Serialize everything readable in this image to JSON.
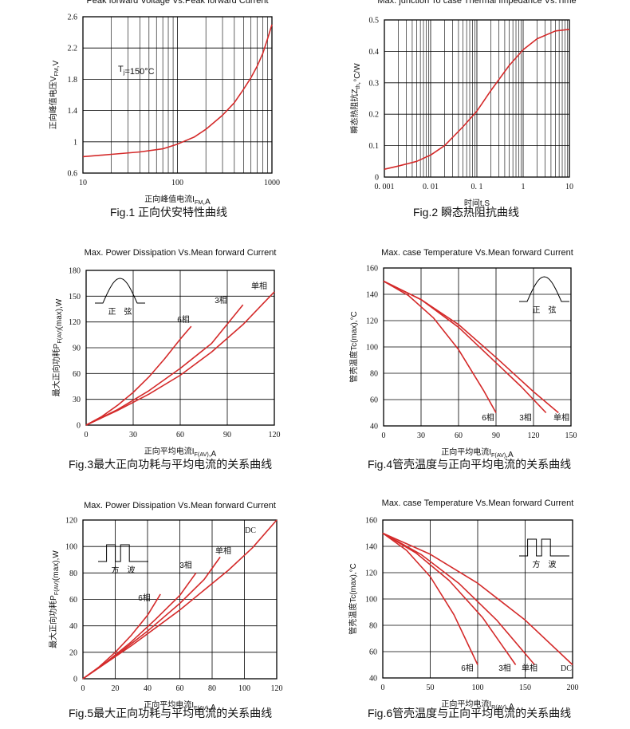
{
  "chart_data": [
    {
      "id": "fig1",
      "type": "line",
      "title": "Peak forward Voltage Vs.Peak forward Current",
      "xlabel": "正向峰值电流I_{FM},A",
      "ylabel": "正向峰值电压V_{FM},V",
      "xscale": "log",
      "xlim": [
        10,
        1000
      ],
      "xticks": [
        10,
        100,
        1000
      ],
      "xtick_labels": [
        "10",
        "100",
        "1000"
      ],
      "ylim": [
        0.6,
        2.6
      ],
      "yticks": [
        0.6,
        1,
        1.4,
        1.8,
        2.2,
        2.6
      ],
      "ytick_labels": [
        "0.6",
        "1",
        "1.4",
        "1.8",
        "2.2",
        "2.6"
      ],
      "annotation": "T_{j}=150°C",
      "series": [
        {
          "name": "VFM",
          "x": [
            10,
            20,
            40,
            70,
            100,
            150,
            200,
            300,
            400,
            500,
            600,
            700,
            800,
            900,
            1000
          ],
          "y": [
            0.81,
            0.84,
            0.87,
            0.91,
            0.97,
            1.06,
            1.16,
            1.34,
            1.5,
            1.67,
            1.82,
            1.97,
            2.13,
            2.32,
            2.5
          ]
        }
      ],
      "caption": "Fig.1 正向伏安特性曲线"
    },
    {
      "id": "fig2",
      "type": "line",
      "title": "Max. junction To case Thermal Impedance Vs.Time",
      "xlabel": "时间t,S",
      "ylabel": "瞬态热阻抗Z_{th},°C/W",
      "xscale": "log",
      "xlim": [
        0.001,
        10
      ],
      "xticks": [
        0.001,
        0.01,
        0.1,
        1,
        10
      ],
      "xtick_labels": [
        "0. 001",
        "0. 01",
        "0. 1",
        "1",
        "10"
      ],
      "ylim": [
        0,
        0.5
      ],
      "yticks": [
        0,
        0.1,
        0.2,
        0.3,
        0.4,
        0.5
      ],
      "ytick_labels": [
        "0",
        "0.1",
        "0.2",
        "0.3",
        "0.4",
        "0.5"
      ],
      "series": [
        {
          "name": "Zth",
          "x": [
            0.001,
            0.002,
            0.005,
            0.01,
            0.02,
            0.05,
            0.1,
            0.2,
            0.5,
            1,
            2,
            5,
            10
          ],
          "y": [
            0.025,
            0.035,
            0.05,
            0.07,
            0.1,
            0.16,
            0.21,
            0.275,
            0.355,
            0.405,
            0.44,
            0.465,
            0.47
          ]
        }
      ],
      "caption": "Fig.2  瞬态热阻抗曲线"
    },
    {
      "id": "fig3",
      "type": "line",
      "title": "Max. Power Dissipation Vs.Mean forward Current",
      "xlabel": "正向平均电流I_{F(AV)},A",
      "ylabel": "最大正向功耗P_{F(AV)}(max),W",
      "xlim": [
        0,
        120
      ],
      "xticks": [
        0,
        30,
        60,
        90,
        120
      ],
      "xtick_labels": [
        "0",
        "30",
        "60",
        "90",
        "120"
      ],
      "ylim": [
        0,
        180
      ],
      "yticks": [
        0,
        30,
        60,
        90,
        120,
        150,
        180
      ],
      "ytick_labels": [
        "0",
        "30",
        "60",
        "90",
        "120",
        "150",
        "180"
      ],
      "inset": {
        "shape": "sine",
        "label": "正　弦"
      },
      "series": [
        {
          "name": "6相",
          "x": [
            0,
            10,
            20,
            30,
            40,
            50,
            60,
            67
          ],
          "y": [
            0,
            10,
            23,
            38,
            56,
            77,
            100,
            115
          ]
        },
        {
          "name": "3相",
          "x": [
            0,
            20,
            40,
            60,
            80,
            100
          ],
          "y": [
            0,
            18,
            40,
            66,
            95,
            140
          ]
        },
        {
          "name": "单相",
          "x": [
            0,
            20,
            40,
            60,
            80,
            100,
            120
          ],
          "y": [
            0,
            17,
            36,
            58,
            85,
            117,
            155
          ]
        }
      ],
      "caption": "Fig.3最大正向功耗与平均电流的关系曲线"
    },
    {
      "id": "fig4",
      "type": "line",
      "title": "Max. case Temperature Vs.Mean forward Current",
      "xlabel": "正向平均电流I_{F(AV)},A",
      "ylabel": "管壳温度Tc(max),°C",
      "xlim": [
        0,
        150
      ],
      "xticks": [
        0,
        30,
        60,
        90,
        120,
        150
      ],
      "xtick_labels": [
        "0",
        "30",
        "60",
        "90",
        "120",
        "150"
      ],
      "ylim": [
        40,
        160
      ],
      "yticks": [
        40,
        60,
        80,
        100,
        120,
        140,
        160
      ],
      "ytick_labels": [
        "40",
        "60",
        "80",
        "100",
        "120",
        "140",
        "160"
      ],
      "inset": {
        "shape": "sine",
        "label": "正　弦"
      },
      "series": [
        {
          "name": "6相",
          "x": [
            0,
            20,
            40,
            60,
            80,
            90
          ],
          "y": [
            150,
            139,
            122,
            98,
            67,
            50
          ]
        },
        {
          "name": "3相",
          "x": [
            0,
            30,
            60,
            90,
            110,
            130
          ],
          "y": [
            150,
            136,
            115,
            88,
            70,
            50
          ]
        },
        {
          "name": "单相",
          "x": [
            0,
            30,
            60,
            90,
            120,
            140
          ],
          "y": [
            150,
            136,
            117,
            92,
            66,
            50
          ]
        }
      ],
      "caption": "Fig.4管壳温度与正向平均电流的关系曲线"
    },
    {
      "id": "fig5",
      "type": "line",
      "title": "Max. Power Dissipation Vs.Mean forward Current",
      "xlabel": "正向平均电流I_{F(AV)},A",
      "ylabel": "最大正向功耗P_{F(AV)}(max),W",
      "xlim": [
        0,
        120
      ],
      "xticks": [
        0,
        20,
        40,
        60,
        80,
        100,
        120
      ],
      "xtick_labels": [
        "0",
        "20",
        "40",
        "60",
        "80",
        "100",
        "120"
      ],
      "ylim": [
        0,
        120
      ],
      "yticks": [
        0,
        20,
        40,
        60,
        80,
        100,
        120
      ],
      "ytick_labels": [
        "0",
        "20",
        "40",
        "60",
        "80",
        "100",
        "120"
      ],
      "inset": {
        "shape": "square",
        "label": "方　波"
      },
      "series": [
        {
          "name": "6相",
          "x": [
            0,
            10,
            20,
            30,
            40,
            48
          ],
          "y": [
            0,
            9,
            20,
            33,
            48,
            64
          ]
        },
        {
          "name": "3相",
          "x": [
            0,
            15,
            30,
            45,
            60,
            70
          ],
          "y": [
            0,
            13,
            28,
            45,
            63,
            80
          ]
        },
        {
          "name": "单相",
          "x": [
            0,
            20,
            40,
            60,
            75,
            85
          ],
          "y": [
            0,
            17,
            36,
            57,
            75,
            92
          ]
        },
        {
          "name": "DC",
          "x": [
            0,
            30,
            60,
            90,
            105,
            120
          ],
          "y": [
            0,
            25,
            52,
            82,
            99,
            120
          ]
        }
      ],
      "caption": "Fig.5最大正向功耗与平均电流的关系曲线"
    },
    {
      "id": "fig6",
      "type": "line",
      "title": "Max. case Temperature Vs.Mean forward Current",
      "xlabel": "正向平均电流I_{R(AV)},A",
      "ylabel": "管壳温度Tc(max),°C",
      "xlim": [
        0,
        200
      ],
      "xticks": [
        0,
        50,
        100,
        150,
        200
      ],
      "xtick_labels": [
        "0",
        "50",
        "100",
        "150",
        "200"
      ],
      "ylim": [
        40,
        160
      ],
      "yticks": [
        40,
        60,
        80,
        100,
        120,
        140,
        160
      ],
      "ytick_labels": [
        "40",
        "60",
        "80",
        "100",
        "120",
        "140",
        "160"
      ],
      "inset": {
        "shape": "square",
        "label": "方　波"
      },
      "series": [
        {
          "name": "6相",
          "x": [
            0,
            25,
            50,
            75,
            100
          ],
          "y": [
            150,
            137,
            117,
            88,
            50
          ]
        },
        {
          "name": "3相",
          "x": [
            0,
            35,
            70,
            105,
            140
          ],
          "y": [
            150,
            135,
            114,
            86,
            50
          ]
        },
        {
          "name": "单相",
          "x": [
            0,
            40,
            80,
            120,
            160
          ],
          "y": [
            150,
            134,
            112,
            84,
            50
          ]
        },
        {
          "name": "DC",
          "x": [
            0,
            50,
            100,
            150,
            200
          ],
          "y": [
            150,
            134,
            112,
            84,
            50
          ]
        }
      ],
      "caption": "Fig.6管壳温度与正向平均电流的关系曲线"
    }
  ],
  "colors": {
    "curve": "#d42a2a",
    "axis": "#000000",
    "grid": "#000000"
  }
}
